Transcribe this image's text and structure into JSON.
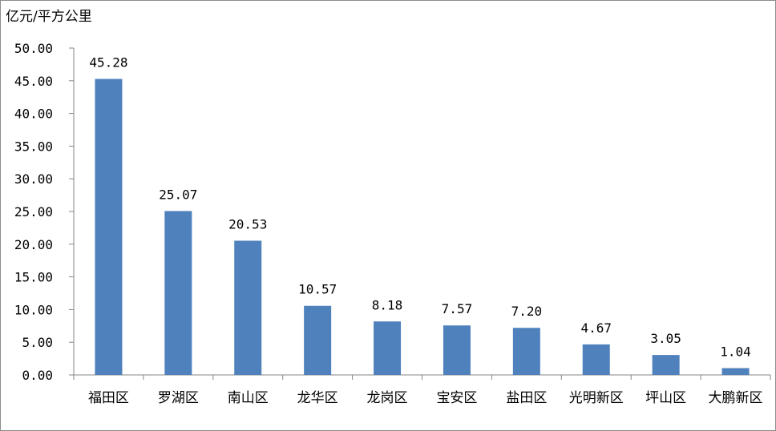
{
  "chart_data": {
    "type": "bar",
    "unit_label": "亿元/平方公里",
    "categories": [
      "福田区",
      "罗湖区",
      "南山区",
      "龙华区",
      "龙岗区",
      "宝安区",
      "盐田区",
      "光明新区",
      "坪山区",
      "大鹏新区"
    ],
    "values": [
      45.28,
      25.07,
      20.53,
      10.57,
      8.18,
      7.57,
      7.2,
      4.67,
      3.05,
      1.04
    ],
    "value_labels": [
      "45.28",
      "25.07",
      "20.53",
      "10.57",
      "8.18",
      "7.57",
      "7.20",
      "4.67",
      "3.05",
      "1.04"
    ],
    "y_ticks": [
      "0.00",
      "5.00",
      "10.00",
      "15.00",
      "20.00",
      "25.00",
      "30.00",
      "35.00",
      "40.00",
      "45.00",
      "50.00"
    ],
    "ylim": [
      0,
      50
    ],
    "grid": false,
    "legend": "none",
    "bar_color": "#4f81bd"
  }
}
